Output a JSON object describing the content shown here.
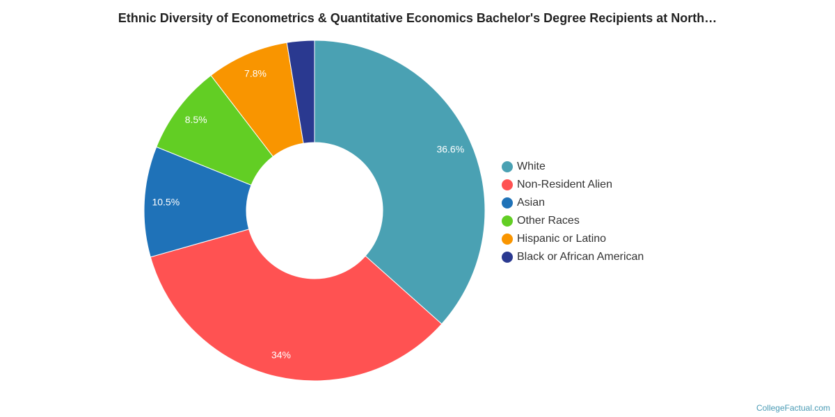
{
  "chart_data": {
    "type": "pie",
    "title": "Ethnic Diversity of Econometrics & Quantitative Economics Bachelor's Degree Recipients at North…",
    "series": [
      {
        "name": "White",
        "value": 36.6,
        "label": "36.6%",
        "color": "#4aa1b3"
      },
      {
        "name": "Non-Resident Alien",
        "value": 34,
        "label": "34%",
        "color": "#ff5252"
      },
      {
        "name": "Asian",
        "value": 10.5,
        "label": "10.5%",
        "color": "#1f72b8"
      },
      {
        "name": "Other Races",
        "value": 8.5,
        "label": "8.5%",
        "color": "#62ce24"
      },
      {
        "name": "Hispanic or Latino",
        "value": 7.8,
        "label": "7.8%",
        "color": "#f99500"
      },
      {
        "name": "Black or African American",
        "value": 2.6,
        "label": "",
        "color": "#2a3990"
      }
    ],
    "legend_position": "right"
  },
  "credit": "CollegeFactual.com"
}
